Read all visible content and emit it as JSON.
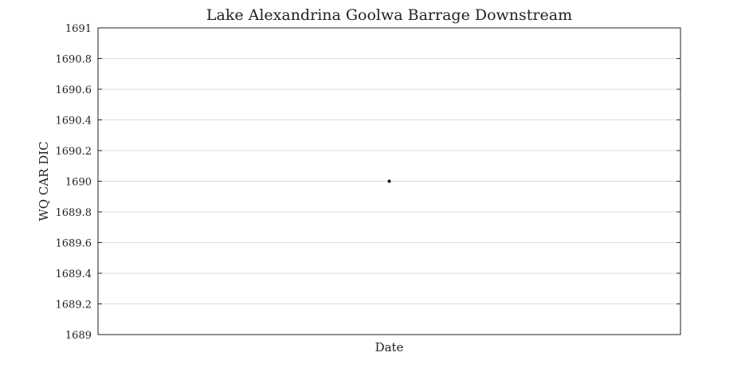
{
  "chart_data": {
    "type": "scatter",
    "title": "Lake Alexandrina Goolwa Barrage Downstream",
    "xlabel": "Date",
    "ylabel": "WQ CAR DIC",
    "ylim": [
      1689,
      1691
    ],
    "y_ticks": [
      "1689",
      "1689.2",
      "1689.4",
      "1689.6",
      "1689.8",
      "1690",
      "1690.2",
      "1690.4",
      "1690.6",
      "1690.8",
      "1691"
    ],
    "grid": true,
    "series": [
      {
        "points": [
          {
            "x_position": "center",
            "y": 1690
          }
        ]
      }
    ],
    "colors": {
      "marker": "#111111",
      "grid": "#dddddd",
      "axes": "#222222"
    }
  }
}
